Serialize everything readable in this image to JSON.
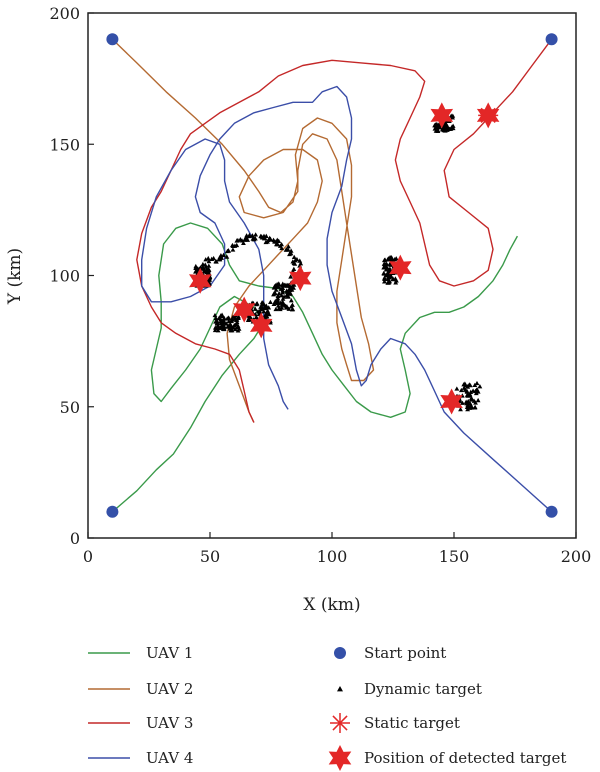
{
  "chart_data": {
    "type": "line",
    "title": "",
    "xlabel": "X (km)",
    "ylabel": "Y (km)",
    "xlim": [
      0,
      200
    ],
    "ylim": [
      0,
      200
    ],
    "xticks": [
      0,
      50,
      100,
      150,
      200
    ],
    "yticks": [
      0,
      50,
      100,
      150,
      200
    ],
    "xtick_labels": [
      "0",
      "50",
      "100",
      "150",
      "200"
    ],
    "ytick_labels": [
      "0",
      "50",
      "100",
      "150",
      "200"
    ],
    "grid": false,
    "legend_position": "bottom",
    "series": [
      {
        "name": "UAV 1",
        "color": "#3a9a4a",
        "points": [
          [
            10,
            10
          ],
          [
            20,
            18
          ],
          [
            28,
            26
          ],
          [
            35,
            32
          ],
          [
            42,
            42
          ],
          [
            48,
            52
          ],
          [
            55,
            62
          ],
          [
            62,
            70
          ],
          [
            68,
            76
          ],
          [
            72,
            82
          ],
          [
            68,
            88
          ],
          [
            60,
            92
          ],
          [
            54,
            88
          ],
          [
            50,
            80
          ],
          [
            46,
            72
          ],
          [
            40,
            64
          ],
          [
            34,
            57
          ],
          [
            30,
            52
          ],
          [
            27,
            55
          ],
          [
            26,
            64
          ],
          [
            28,
            72
          ],
          [
            30,
            80
          ],
          [
            30,
            90
          ],
          [
            29,
            100
          ],
          [
            31,
            112
          ],
          [
            36,
            118
          ],
          [
            42,
            120
          ],
          [
            49,
            118
          ],
          [
            55,
            112
          ],
          [
            58,
            104
          ],
          [
            62,
            98
          ],
          [
            70,
            96
          ],
          [
            78,
            95
          ],
          [
            84,
            92
          ],
          [
            88,
            86
          ],
          [
            92,
            78
          ],
          [
            96,
            70
          ],
          [
            100,
            64
          ],
          [
            105,
            58
          ],
          [
            110,
            52
          ],
          [
            116,
            48
          ],
          [
            124,
            46
          ],
          [
            130,
            48
          ],
          [
            132,
            55
          ],
          [
            130,
            64
          ],
          [
            128,
            72
          ],
          [
            130,
            78
          ],
          [
            136,
            84
          ],
          [
            142,
            86
          ],
          [
            148,
            86
          ],
          [
            154,
            88
          ],
          [
            160,
            92
          ],
          [
            166,
            98
          ],
          [
            170,
            104
          ],
          [
            173,
            110
          ],
          [
            176,
            115
          ]
        ]
      },
      {
        "name": "UAV 2",
        "color": "#b46a32",
        "points": [
          [
            10,
            190
          ],
          [
            20,
            181
          ],
          [
            32,
            170
          ],
          [
            44,
            160
          ],
          [
            55,
            150
          ],
          [
            64,
            140
          ],
          [
            70,
            132
          ],
          [
            74,
            126
          ],
          [
            79,
            124
          ],
          [
            84,
            128
          ],
          [
            86,
            136
          ],
          [
            85,
            146
          ],
          [
            88,
            156
          ],
          [
            94,
            160
          ],
          [
            100,
            158
          ],
          [
            106,
            152
          ],
          [
            108,
            142
          ],
          [
            108,
            130
          ],
          [
            106,
            118
          ],
          [
            104,
            106
          ],
          [
            102,
            94
          ],
          [
            102,
            82
          ],
          [
            104,
            72
          ],
          [
            106,
            66
          ],
          [
            108,
            60
          ],
          [
            113,
            60
          ],
          [
            117,
            64
          ],
          [
            115,
            74
          ],
          [
            112,
            84
          ],
          [
            110,
            96
          ],
          [
            108,
            108
          ],
          [
            106,
            120
          ],
          [
            104,
            132
          ],
          [
            102,
            144
          ],
          [
            98,
            152
          ],
          [
            92,
            154
          ],
          [
            88,
            150
          ],
          [
            86,
            140
          ],
          [
            86,
            132
          ],
          [
            80,
            124
          ],
          [
            72,
            122
          ],
          [
            64,
            124
          ],
          [
            62,
            130
          ],
          [
            66,
            138
          ],
          [
            72,
            144
          ],
          [
            80,
            148
          ],
          [
            88,
            148
          ],
          [
            94,
            144
          ],
          [
            96,
            136
          ],
          [
            94,
            128
          ],
          [
            90,
            120
          ],
          [
            84,
            114
          ],
          [
            78,
            108
          ],
          [
            72,
            102
          ],
          [
            66,
            96
          ],
          [
            60,
            88
          ],
          [
            57,
            78
          ],
          [
            58,
            68
          ],
          [
            62,
            58
          ],
          [
            66,
            48
          ],
          [
            68,
            44
          ]
        ]
      },
      {
        "name": "UAV 3",
        "color": "#c42828",
        "points": [
          [
            190,
            190
          ],
          [
            182,
            180
          ],
          [
            174,
            170
          ],
          [
            166,
            162
          ],
          [
            158,
            154
          ],
          [
            150,
            148
          ],
          [
            146,
            140
          ],
          [
            148,
            130
          ],
          [
            156,
            124
          ],
          [
            164,
            118
          ],
          [
            166,
            110
          ],
          [
            164,
            102
          ],
          [
            158,
            98
          ],
          [
            150,
            96
          ],
          [
            144,
            98
          ],
          [
            140,
            104
          ],
          [
            138,
            112
          ],
          [
            136,
            120
          ],
          [
            132,
            128
          ],
          [
            128,
            136
          ],
          [
            126,
            144
          ],
          [
            128,
            152
          ],
          [
            132,
            160
          ],
          [
            136,
            168
          ],
          [
            138,
            174
          ],
          [
            134,
            178
          ],
          [
            124,
            180
          ],
          [
            112,
            181
          ],
          [
            100,
            182
          ],
          [
            88,
            180
          ],
          [
            78,
            176
          ],
          [
            70,
            170
          ],
          [
            62,
            166
          ],
          [
            54,
            162
          ],
          [
            48,
            158
          ],
          [
            42,
            154
          ],
          [
            38,
            148
          ],
          [
            34,
            140
          ],
          [
            30,
            132
          ],
          [
            26,
            126
          ],
          [
            22,
            116
          ],
          [
            20,
            106
          ],
          [
            22,
            96
          ],
          [
            26,
            88
          ],
          [
            30,
            82
          ],
          [
            36,
            78
          ],
          [
            44,
            74
          ],
          [
            52,
            72
          ],
          [
            58,
            70
          ],
          [
            62,
            64
          ],
          [
            64,
            56
          ],
          [
            66,
            48
          ],
          [
            68,
            44
          ]
        ]
      },
      {
        "name": "UAV 4",
        "color": "#3b4ea8",
        "points": [
          [
            190,
            10
          ],
          [
            178,
            20
          ],
          [
            166,
            30
          ],
          [
            154,
            40
          ],
          [
            146,
            48
          ],
          [
            142,
            56
          ],
          [
            138,
            64
          ],
          [
            134,
            70
          ],
          [
            130,
            74
          ],
          [
            124,
            76
          ],
          [
            120,
            72
          ],
          [
            116,
            66
          ],
          [
            114,
            60
          ],
          [
            112,
            58
          ],
          [
            110,
            64
          ],
          [
            108,
            74
          ],
          [
            104,
            84
          ],
          [
            100,
            94
          ],
          [
            98,
            104
          ],
          [
            98,
            114
          ],
          [
            100,
            124
          ],
          [
            104,
            134
          ],
          [
            106,
            144
          ],
          [
            108,
            152
          ],
          [
            108,
            160
          ],
          [
            106,
            168
          ],
          [
            102,
            172
          ],
          [
            96,
            170
          ],
          [
            92,
            166
          ],
          [
            84,
            166
          ],
          [
            76,
            164
          ],
          [
            68,
            162
          ],
          [
            60,
            158
          ],
          [
            54,
            152
          ],
          [
            50,
            146
          ],
          [
            46,
            138
          ],
          [
            44,
            130
          ],
          [
            46,
            124
          ],
          [
            52,
            120
          ],
          [
            56,
            112
          ],
          [
            56,
            104
          ],
          [
            50,
            96
          ],
          [
            42,
            92
          ],
          [
            34,
            90
          ],
          [
            26,
            90
          ],
          [
            22,
            96
          ],
          [
            22,
            106
          ],
          [
            24,
            118
          ],
          [
            28,
            130
          ],
          [
            34,
            140
          ],
          [
            40,
            148
          ],
          [
            48,
            152
          ],
          [
            54,
            150
          ],
          [
            56,
            144
          ],
          [
            56,
            136
          ],
          [
            58,
            128
          ],
          [
            64,
            120
          ],
          [
            70,
            110
          ],
          [
            72,
            100
          ],
          [
            72,
            88
          ],
          [
            72,
            76
          ],
          [
            74,
            66
          ],
          [
            78,
            58
          ],
          [
            80,
            52
          ],
          [
            82,
            49
          ]
        ]
      }
    ],
    "start_points": [
      [
        10,
        190
      ],
      [
        190,
        190
      ],
      [
        10,
        10
      ],
      [
        190,
        10
      ]
    ],
    "dynamic_target_clusters": [
      {
        "center": [
          146,
          158
        ],
        "spread": [
          4,
          3
        ]
      },
      {
        "center": [
          124,
          102
        ],
        "spread": [
          3,
          5
        ]
      },
      {
        "center": [
          156,
          54
        ],
        "spread": [
          5,
          5
        ]
      },
      {
        "center": [
          57,
          82
        ],
        "spread": [
          5,
          3
        ]
      },
      {
        "center": [
          70,
          86
        ],
        "spread": [
          5,
          4
        ]
      },
      {
        "center": [
          80,
          92
        ],
        "spread": [
          4,
          5
        ]
      },
      {
        "center": [
          47,
          100
        ],
        "spread": [
          3,
          4
        ]
      }
    ],
    "dynamic_target_path": [
      [
        48,
        105
      ],
      [
        52,
        106
      ],
      [
        56,
        108
      ],
      [
        60,
        112
      ],
      [
        64,
        114
      ],
      [
        68,
        115
      ],
      [
        72,
        114
      ],
      [
        76,
        113
      ],
      [
        80,
        112
      ],
      [
        84,
        108
      ],
      [
        86,
        104
      ],
      [
        84,
        98
      ],
      [
        82,
        94
      ]
    ],
    "static_targets": [
      [
        164,
        161
      ]
    ],
    "detected_targets": [
      [
        46,
        98
      ],
      [
        64,
        87
      ],
      [
        71,
        81
      ],
      [
        87,
        99
      ],
      [
        128,
        103
      ],
      [
        145,
        161
      ],
      [
        164,
        161
      ],
      [
        149,
        52
      ]
    ],
    "legend": [
      {
        "label": "UAV 1",
        "marker": "line",
        "color": "#3a9a4a"
      },
      {
        "label": "UAV 2",
        "marker": "line",
        "color": "#b46a32"
      },
      {
        "label": "UAV 3",
        "marker": "line",
        "color": "#c42828"
      },
      {
        "label": "UAV 4",
        "marker": "line",
        "color": "#3b4ea8"
      },
      {
        "label": "Start point",
        "marker": "circle",
        "color": "#3450a8"
      },
      {
        "label": "Dynamic target",
        "marker": "triangle",
        "color": "#000000"
      },
      {
        "label": "Static target",
        "marker": "asterisk",
        "color": "#e32727"
      },
      {
        "label": "Position of detected target",
        "marker": "hexagram",
        "color": "#e32727"
      }
    ]
  }
}
